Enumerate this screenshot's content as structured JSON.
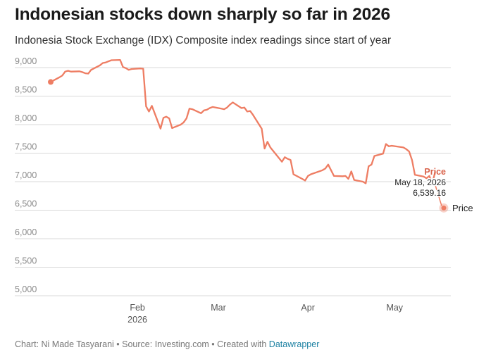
{
  "title": "Indonesian stocks down sharply so far in 2026",
  "subtitle": "Indonesia Stock Exchange (IDX) Composite index readings since start of year",
  "footer": {
    "chart_credit": "Chart: Ni Made Tasyarani",
    "separator": " • ",
    "source": "Source: Investing.com",
    "created_with": "Created with ",
    "tool": "Datawrapper"
  },
  "colors": {
    "line": "#ee7d63",
    "label": "#d9624a",
    "grid": "#d9d9d9",
    "axis_text": "#8a8a8a"
  },
  "chart_data": {
    "type": "line",
    "title": "Indonesian stocks down sharply so far in 2026",
    "subtitle": "Indonesia Stock Exchange (IDX) Composite index readings since start of year",
    "xlabel": "",
    "ylabel": "",
    "ylim": [
      5000,
      9000
    ],
    "x_domain": [
      "2026-01-02",
      "2026-05-18"
    ],
    "y_ticks": [
      {
        "value": 9000,
        "label": "9,000"
      },
      {
        "value": 8500,
        "label": "8,500"
      },
      {
        "value": 8000,
        "label": "8,000"
      },
      {
        "value": 7500,
        "label": "7,500"
      },
      {
        "value": 7000,
        "label": "7,000"
      },
      {
        "value": 6500,
        "label": "6,500"
      },
      {
        "value": 6000,
        "label": "6,000"
      },
      {
        "value": 5500,
        "label": "5,500"
      },
      {
        "value": 5000,
        "label": "5,000"
      }
    ],
    "x_ticks": [
      {
        "date": "2026-02-01",
        "label": "Feb",
        "sublabel": "2026"
      },
      {
        "date": "2026-03-01",
        "label": "Mar",
        "sublabel": ""
      },
      {
        "date": "2026-04-01",
        "label": "Apr",
        "sublabel": ""
      },
      {
        "date": "2026-05-01",
        "label": "May",
        "sublabel": ""
      }
    ],
    "grid": true,
    "legend": "none",
    "series": [
      {
        "name": "Price",
        "data": [
          [
            "2026-01-02",
            8748
          ],
          [
            "2026-01-05",
            8830
          ],
          [
            "2026-01-06",
            8860
          ],
          [
            "2026-01-07",
            8930
          ],
          [
            "2026-01-08",
            8945
          ],
          [
            "2026-01-09",
            8930
          ],
          [
            "2026-01-12",
            8935
          ],
          [
            "2026-01-13",
            8920
          ],
          [
            "2026-01-14",
            8900
          ],
          [
            "2026-01-15",
            8895
          ],
          [
            "2026-01-16",
            8960
          ],
          [
            "2026-01-19",
            9040
          ],
          [
            "2026-01-20",
            9080
          ],
          [
            "2026-01-21",
            9090
          ],
          [
            "2026-01-22",
            9110
          ],
          [
            "2026-01-23",
            9130
          ],
          [
            "2026-01-26",
            9135
          ],
          [
            "2026-01-27",
            9010
          ],
          [
            "2026-01-28",
            8990
          ],
          [
            "2026-01-29",
            8960
          ],
          [
            "2026-01-30",
            8975
          ],
          [
            "2026-02-02",
            8985
          ],
          [
            "2026-02-03",
            8980
          ],
          [
            "2026-02-04",
            8320
          ],
          [
            "2026-02-05",
            8230
          ],
          [
            "2026-02-06",
            8330
          ],
          [
            "2026-02-09",
            7930
          ],
          [
            "2026-02-10",
            8120
          ],
          [
            "2026-02-11",
            8140
          ],
          [
            "2026-02-12",
            8110
          ],
          [
            "2026-02-13",
            7940
          ],
          [
            "2026-02-16",
            8000
          ],
          [
            "2026-02-17",
            8040
          ],
          [
            "2026-02-18",
            8110
          ],
          [
            "2026-02-19",
            8280
          ],
          [
            "2026-02-20",
            8270
          ],
          [
            "2026-02-23",
            8200
          ],
          [
            "2026-02-24",
            8250
          ],
          [
            "2026-02-25",
            8260
          ],
          [
            "2026-02-26",
            8290
          ],
          [
            "2026-02-27",
            8310
          ],
          [
            "2026-03-02",
            8280
          ],
          [
            "2026-03-03",
            8270
          ],
          [
            "2026-03-04",
            8300
          ],
          [
            "2026-03-05",
            8350
          ],
          [
            "2026-03-06",
            8390
          ],
          [
            "2026-03-09",
            8290
          ],
          [
            "2026-03-10",
            8300
          ],
          [
            "2026-03-11",
            8230
          ],
          [
            "2026-03-12",
            8240
          ],
          [
            "2026-03-13",
            8170
          ],
          [
            "2026-03-16",
            7930
          ],
          [
            "2026-03-17",
            7580
          ],
          [
            "2026-03-18",
            7700
          ],
          [
            "2026-03-19",
            7600
          ],
          [
            "2026-03-23",
            7350
          ],
          [
            "2026-03-24",
            7430
          ],
          [
            "2026-03-25",
            7400
          ],
          [
            "2026-03-26",
            7380
          ],
          [
            "2026-03-27",
            7130
          ],
          [
            "2026-03-30",
            7050
          ],
          [
            "2026-03-31",
            7020
          ],
          [
            "2026-04-01",
            7100
          ],
          [
            "2026-04-02",
            7130
          ],
          [
            "2026-04-06",
            7200
          ],
          [
            "2026-04-07",
            7230
          ],
          [
            "2026-04-08",
            7300
          ],
          [
            "2026-04-09",
            7200
          ],
          [
            "2026-04-10",
            7100
          ],
          [
            "2026-04-13",
            7095
          ],
          [
            "2026-04-14",
            7100
          ],
          [
            "2026-04-15",
            7050
          ],
          [
            "2026-04-16",
            7180
          ],
          [
            "2026-04-17",
            7030
          ],
          [
            "2026-04-20",
            7000
          ],
          [
            "2026-04-21",
            6970
          ],
          [
            "2026-04-22",
            7270
          ],
          [
            "2026-04-23",
            7300
          ],
          [
            "2026-04-24",
            7450
          ],
          [
            "2026-04-27",
            7490
          ],
          [
            "2026-04-28",
            7660
          ],
          [
            "2026-04-29",
            7620
          ],
          [
            "2026-04-30",
            7630
          ],
          [
            "2026-05-04",
            7600
          ],
          [
            "2026-05-05",
            7570
          ],
          [
            "2026-05-06",
            7530
          ],
          [
            "2026-05-07",
            7380
          ],
          [
            "2026-05-08",
            7120
          ],
          [
            "2026-05-11",
            7090
          ],
          [
            "2026-05-12",
            7060
          ],
          [
            "2026-05-13",
            7100
          ],
          [
            "2026-05-14",
            6960
          ],
          [
            "2026-05-15",
            7170
          ]
        ],
        "highlight": {
          "date": "2026-05-18",
          "value": 6539.16,
          "series_label": "Price",
          "date_label": "May 18, 2026",
          "value_label": "6,539.16",
          "end_label": "Price"
        }
      }
    ]
  }
}
